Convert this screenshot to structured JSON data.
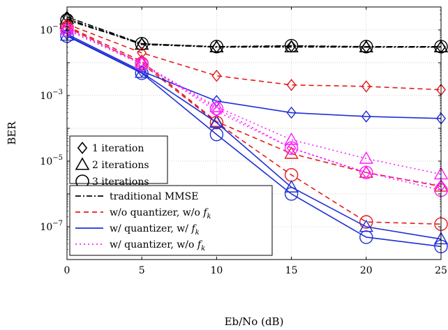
{
  "chart_data": {
    "type": "line",
    "xlabel": "Eb/No (dB)",
    "ylabel": "BER",
    "xlim": [
      0,
      25
    ],
    "ylim_log10": [
      -8,
      -0.3
    ],
    "yscale": "log",
    "grid": true,
    "x": [
      0,
      5,
      10,
      15,
      20,
      25
    ],
    "x_ticks": [
      "0",
      "5",
      "10",
      "15",
      "20",
      "25"
    ],
    "y_ticks": [
      {
        "exp": -1,
        "label": "10",
        "sup": "−1"
      },
      {
        "exp": -3,
        "label": "10",
        "sup": "−3"
      },
      {
        "exp": -5,
        "label": "10",
        "sup": "−5"
      },
      {
        "exp": -7,
        "label": "10",
        "sup": "−7"
      }
    ],
    "colors": {
      "mmse": "#000000",
      "noq_nof": "#e41a1c",
      "q_f": "#1f2fd6",
      "q_nof": "#ff1fff"
    },
    "styles": [
      {
        "key": "mmse",
        "label": "traditional MMSE",
        "color": "#000000",
        "dash": "8,3,2,3"
      },
      {
        "key": "noq_nof",
        "label": "w/o quantizer, w/o ",
        "fk": "f",
        "fk_sub": "k",
        "color": "#e41a1c",
        "dash": "7,5"
      },
      {
        "key": "q_f",
        "label": "w/ quantizer, w/ ",
        "fk": "f",
        "fk_sub": "k",
        "color": "#1f2fd6",
        "dash": ""
      },
      {
        "key": "q_nof",
        "label": "w/ quantizer, w/o ",
        "fk": "f",
        "fk_sub": "k",
        "color": "#ff1fff",
        "dash": "2,4"
      }
    ],
    "markers": [
      {
        "shape": "diamond",
        "label": "1 iteration"
      },
      {
        "shape": "triangle",
        "label": "2 iterations"
      },
      {
        "shape": "circle",
        "label": "3 iterations"
      }
    ],
    "series": [
      {
        "style": "mmse",
        "marker": "diamond",
        "values": [
          0.25,
          0.038,
          0.03,
          0.032,
          0.03,
          0.03
        ]
      },
      {
        "style": "mmse",
        "marker": "triangle",
        "values": [
          0.22,
          0.036,
          0.03,
          0.03,
          0.03,
          0.03
        ]
      },
      {
        "style": "mmse",
        "marker": "circle",
        "values": [
          0.2,
          0.038,
          0.031,
          0.033,
          0.031,
          0.031
        ]
      },
      {
        "style": "noq_nof",
        "marker": "diamond",
        "values": [
          0.15,
          0.02,
          0.004,
          0.0021,
          0.0019,
          0.0015
        ]
      },
      {
        "style": "noq_nof",
        "marker": "triangle",
        "values": [
          0.13,
          0.011,
          0.00016,
          1.7e-05,
          4.5e-06,
          1.7e-06
        ]
      },
      {
        "style": "noq_nof",
        "marker": "circle",
        "values": [
          0.12,
          0.0095,
          0.00015,
          3.8e-06,
          1.4e-07,
          1.2e-07
        ]
      },
      {
        "style": "q_f",
        "marker": "diamond",
        "values": [
          0.075,
          0.0055,
          0.00068,
          0.0003,
          0.00023,
          0.0002
        ]
      },
      {
        "style": "q_f",
        "marker": "triangle",
        "values": [
          0.068,
          0.005,
          0.00015,
          1.6e-06,
          1e-07,
          4.2e-08
        ]
      },
      {
        "style": "q_f",
        "marker": "circle",
        "values": [
          0.065,
          0.0048,
          6.5e-05,
          1e-06,
          4.8e-08,
          2.5e-08
        ]
      },
      {
        "style": "q_nof",
        "marker": "diamond",
        "values": [
          0.11,
          0.01,
          0.00033,
          2.5e-05,
          4.5e-06,
          1.8e-06
        ]
      },
      {
        "style": "q_nof",
        "marker": "triangle",
        "values": [
          0.11,
          0.0095,
          0.00045,
          4.5e-05,
          1.2e-05,
          4e-06
        ]
      },
      {
        "style": "q_nof",
        "marker": "circle",
        "values": [
          0.1,
          0.009,
          0.0004,
          2.5e-05,
          4.5e-06,
          1.3e-06
        ]
      }
    ]
  }
}
